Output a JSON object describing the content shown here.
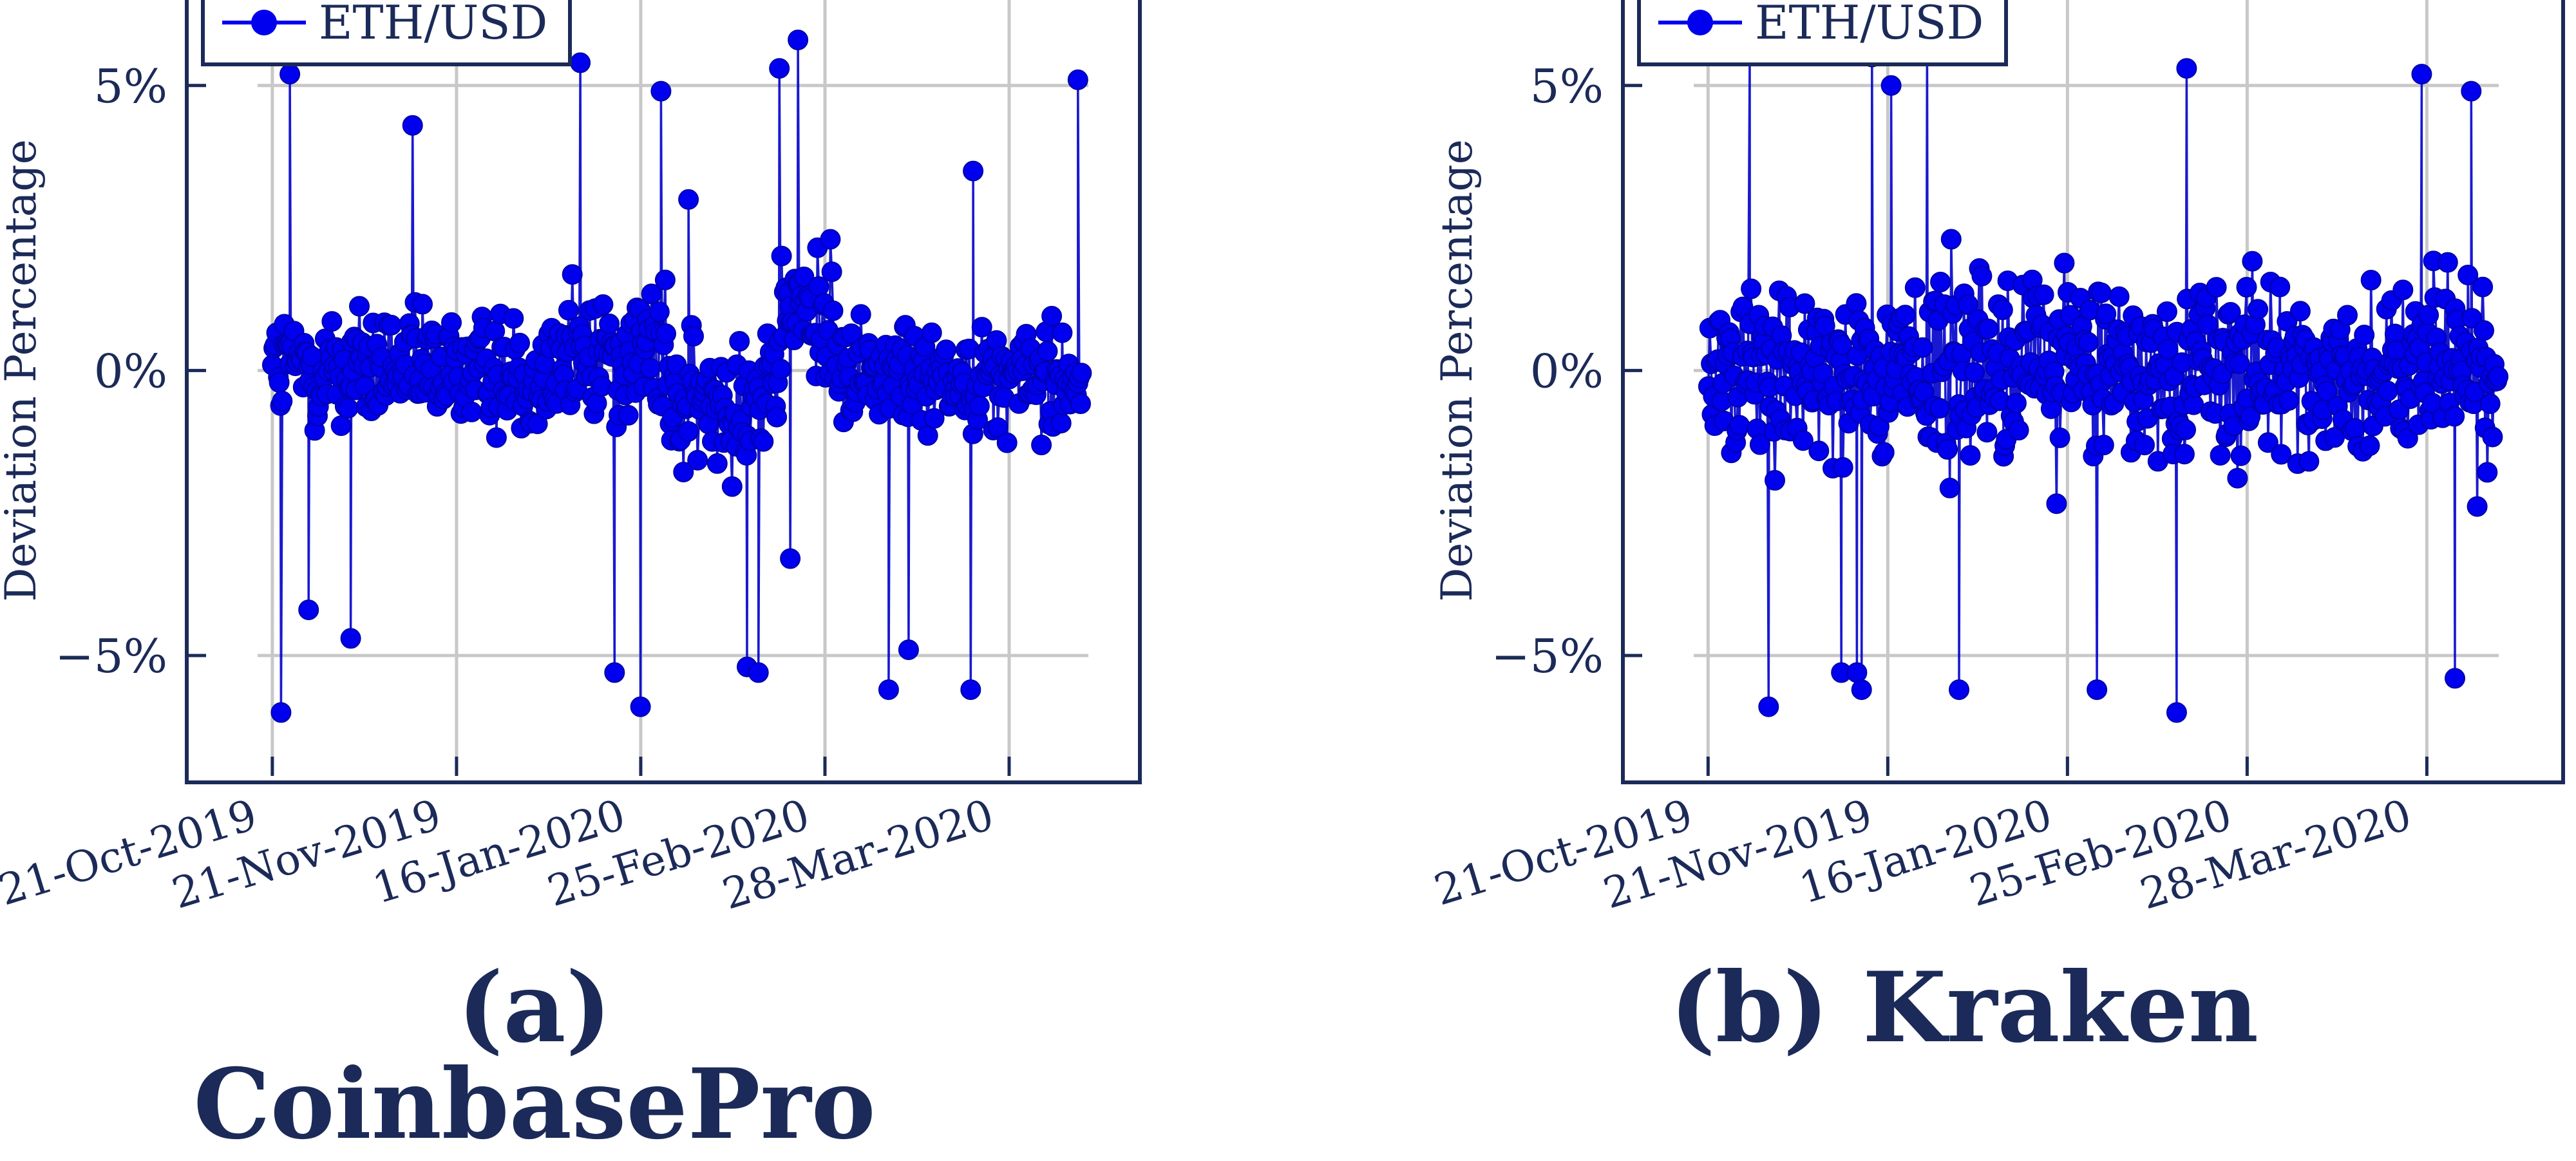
{
  "panels": [
    {
      "caption_label": "(a)",
      "caption_name": "CoinbasePro",
      "legend": "ETH/USD",
      "ylabel": "Deviation Percentage",
      "yticks": [
        "5%",
        "0%",
        "−5%"
      ],
      "xticks": [
        "21-Oct-2019",
        "21-Nov-2019",
        "16-Jan-2020",
        "25-Feb-2020",
        "28-Mar-2020"
      ]
    },
    {
      "caption_label": "(b)",
      "caption_name": "Kraken",
      "legend": "ETH/USD",
      "ylabel": "Deviation Percentage",
      "yticks": [
        "5%",
        "0%",
        "−5%"
      ],
      "xticks": [
        "21-Oct-2019",
        "21-Nov-2019",
        "16-Jan-2020",
        "25-Feb-2020",
        "28-Mar-2020"
      ]
    }
  ],
  "chart_data": [
    {
      "type": "line",
      "title": "(a) CoinbasePro",
      "ylabel": "Deviation Percentage",
      "ylim": [
        -7,
        6.5
      ],
      "yticks": [
        5,
        0,
        -5
      ],
      "x_categories": [
        "21-Oct-2019",
        "21-Nov-2019",
        "16-Jan-2020",
        "25-Feb-2020",
        "28-Mar-2020"
      ],
      "grid": true,
      "legend_position": "top-left",
      "colors": {
        "series": "#0000ee",
        "axis": "#1b2a58"
      },
      "series": [
        {
          "name": "ETH/USD",
          "x_range": [
            -0.05,
            4.4
          ],
          "segments": [
            {
              "x": [
                0.0,
                1.55
              ],
              "mean": 0.0,
              "spread": 1.4,
              "spikes": [
                -6.0,
                5.2,
                -4.7,
                4.3,
                -4.2
              ]
            },
            {
              "x": [
                1.55,
                2.15
              ],
              "mean": 0.3,
              "spread": 1.6,
              "spikes": [
                5.4,
                4.9,
                -5.9,
                -5.3
              ]
            },
            {
              "x": [
                2.15,
                2.75
              ],
              "mean": -0.6,
              "spread": 1.6,
              "spikes": [
                -5.2,
                3.0,
                -5.3
              ]
            },
            {
              "x": [
                2.75,
                3.05
              ],
              "mean": 1.0,
              "spread": 1.5,
              "spikes": [
                5.8,
                5.3,
                -3.3
              ]
            },
            {
              "x": [
                3.05,
                4.4
              ],
              "mean": -0.1,
              "spread": 1.2,
              "spikes": [
                5.1,
                -5.6,
                -5.6,
                3.5,
                -4.9
              ]
            }
          ]
        }
      ]
    },
    {
      "type": "line",
      "title": "(b) Kraken",
      "ylabel": "Deviation Percentage",
      "ylim": [
        -7,
        6.5
      ],
      "yticks": [
        5,
        0,
        -5
      ],
      "x_categories": [
        "21-Oct-2019",
        "21-Nov-2019",
        "16-Jan-2020",
        "25-Feb-2020",
        "28-Mar-2020"
      ],
      "grid": true,
      "legend_position": "top-left",
      "colors": {
        "series": "#0000ee",
        "axis": "#1b2a58"
      },
      "series": [
        {
          "name": "ETH/USD",
          "x_range": [
            0.0,
            4.4
          ],
          "segments": [
            {
              "x": [
                0.0,
                4.4
              ],
              "mean": 0.0,
              "spread": 2.0,
              "spikes": [
                5.7,
                -6.0,
                5.6,
                -5.9,
                5.3,
                -5.6,
                5.0,
                -5.3,
                5.5,
                5.2,
                -5.6,
                -5.4,
                4.9,
                -5.6,
                -5.3
              ]
            }
          ]
        }
      ]
    }
  ]
}
